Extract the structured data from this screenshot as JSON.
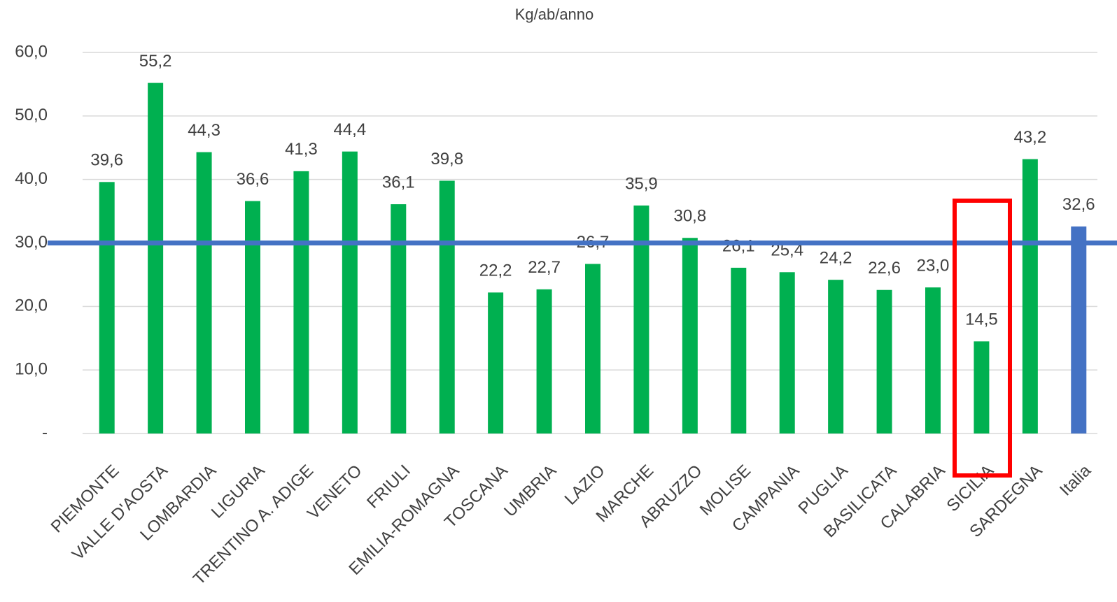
{
  "chart_data": {
    "type": "bar",
    "title": "Kg/ab/anno",
    "categories": [
      "PIEMONTE",
      "VALLE D'AOSTA",
      "LOMBARDIA",
      "LIGURIA",
      "TRENTINO A. ADIGE",
      "VENETO",
      "FRIULI",
      "EMILIA-ROMAGNA",
      "TOSCANA",
      "UMBRIA",
      "LAZIO",
      "MARCHE",
      "ABRUZZO",
      "MOLISE",
      "CAMPANIA",
      "PUGLIA",
      "BASILICATA",
      "CALABRIA",
      "SICILIA",
      "SARDEGNA",
      "Italia"
    ],
    "values": [
      39.6,
      55.2,
      44.3,
      36.6,
      41.3,
      44.4,
      36.1,
      39.8,
      22.2,
      22.7,
      26.7,
      35.9,
      30.8,
      26.1,
      25.4,
      24.2,
      22.6,
      23.0,
      14.5,
      43.2,
      32.6
    ],
    "value_labels": [
      "39,6",
      "55,2",
      "44,3",
      "36,6",
      "41,3",
      "44,4",
      "36,1",
      "39,8",
      "22,2",
      "22,7",
      "26,7",
      "35,9",
      "30,8",
      "26,1",
      "25,4",
      "24,2",
      "22,6",
      "23,0",
      "14,5",
      "43,2",
      "32,6"
    ],
    "colors": [
      "#00b050",
      "#00b050",
      "#00b050",
      "#00b050",
      "#00b050",
      "#00b050",
      "#00b050",
      "#00b050",
      "#00b050",
      "#00b050",
      "#00b050",
      "#00b050",
      "#00b050",
      "#00b050",
      "#00b050",
      "#00b050",
      "#00b050",
      "#00b050",
      "#00b050",
      "#00b050",
      "#4472c4"
    ],
    "ylim": [
      0,
      60
    ],
    "yticks": [
      {
        "value": 0,
        "label": "-"
      },
      {
        "value": 10,
        "label": "10,0"
      },
      {
        "value": 20,
        "label": "20,0"
      },
      {
        "value": 30,
        "label": "30,0"
      },
      {
        "value": 40,
        "label": "40,0"
      },
      {
        "value": 50,
        "label": "50,0"
      },
      {
        "value": 60,
        "label": "60,0"
      }
    ],
    "grid": true,
    "reference_line": 30,
    "reference_line_color": "#4472c4"
  }
}
